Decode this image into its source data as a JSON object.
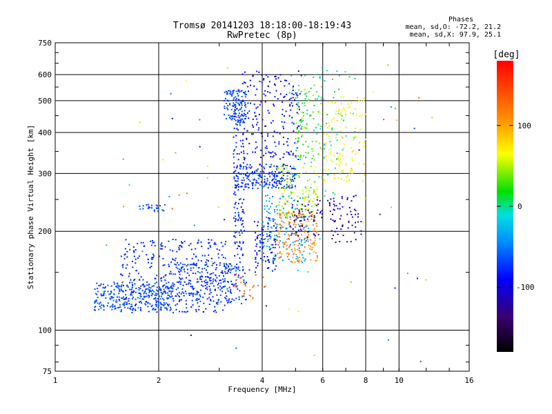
{
  "chart_data": {
    "type": "scatter",
    "title": "Tromsø 20141203 18:18:00-18:19:43",
    "subtitle": "RwPretec (8p)",
    "xlabel": "Frequency [MHz]",
    "ylabel": "Stationary phase Virtual Height [km]",
    "x_scale": "log",
    "y_scale": "log",
    "xlim": [
      1,
      16
    ],
    "ylim": [
      75,
      750
    ],
    "grid": true,
    "x_ticks": [
      1,
      2,
      4,
      6,
      8,
      10,
      16
    ],
    "y_ticks": [
      75,
      100,
      200,
      300,
      400,
      500,
      600,
      750
    ],
    "info": {
      "heading": "Phases",
      "line1": "mean, sd,O: -72.2, 21.2",
      "line2": "mean, sd,X:  97.9, 25.1"
    },
    "colorbar": {
      "label": "[deg]",
      "ticks": [
        100,
        0,
        -100
      ],
      "range": [
        -180,
        180
      ]
    },
    "point_groups": [
      {
        "x": [
          1.3,
          2.2
        ],
        "y": [
          115,
          140
        ],
        "phase": [
          -75,
          -60
        ],
        "n": 300
      },
      {
        "x": [
          1.55,
          3.2
        ],
        "y": [
          113,
          190
        ],
        "phase": [
          -90,
          -75
        ],
        "n": 350
      },
      {
        "x": [
          2.2,
          3.6
        ],
        "y": [
          120,
          160
        ],
        "phase": [
          -85,
          -65
        ],
        "n": 220
      },
      {
        "x": [
          1.75,
          2.1
        ],
        "y": [
          230,
          242
        ],
        "phase": [
          -75,
          -65
        ],
        "n": 25
      },
      {
        "x": [
          3.1,
          3.6
        ],
        "y": [
          430,
          540
        ],
        "phase": [
          -80,
          -60
        ],
        "n": 120
      },
      {
        "x": [
          3.3,
          3.55
        ],
        "y": [
          160,
          500
        ],
        "phase": [
          -95,
          -70
        ],
        "n": 130
      },
      {
        "x": [
          3.3,
          5.0
        ],
        "y": [
          270,
          320
        ],
        "phase": [
          -90,
          -65
        ],
        "n": 220
      },
      {
        "x": [
          3.5,
          5.2
        ],
        "y": [
          330,
          620
        ],
        "phase": [
          -110,
          -80
        ],
        "n": 200
      },
      {
        "x": [
          4.0,
          5.5
        ],
        "y": [
          160,
          260
        ],
        "phase": [
          -55,
          -25
        ],
        "n": 160
      },
      {
        "x": [
          3.8,
          4.4
        ],
        "y": [
          150,
          220
        ],
        "phase": [
          -110,
          -85
        ],
        "n": 80
      },
      {
        "x": [
          3.3,
          4.1
        ],
        "y": [
          125,
          150
        ],
        "phase": [
          115,
          140
        ],
        "n": 25
      },
      {
        "x": [
          4.4,
          5.8
        ],
        "y": [
          160,
          230
        ],
        "phase": [
          95,
          135
        ],
        "n": 160
      },
      {
        "x": [
          4.4,
          5.8
        ],
        "y": [
          220,
          320
        ],
        "phase": [
          40,
          70
        ],
        "n": 130
      },
      {
        "x": [
          4.8,
          6.0
        ],
        "y": [
          190,
          250
        ],
        "phase": [
          -135,
          -110
        ],
        "n": 60
      },
      {
        "x": [
          5.0,
          6.0
        ],
        "y": [
          330,
          560
        ],
        "phase": [
          15,
          50
        ],
        "n": 80
      },
      {
        "x": [
          6.0,
          8.0
        ],
        "y": [
          280,
          520
        ],
        "phase": [
          55,
          85
        ],
        "n": 120
      },
      {
        "x": [
          6.2,
          7.8
        ],
        "y": [
          185,
          260
        ],
        "phase": [
          -140,
          -110
        ],
        "n": 70
      },
      {
        "x": [
          4.8,
          7.5
        ],
        "y": [
          250,
          620
        ],
        "phase": [
          -30,
          20
        ],
        "n": 80
      },
      {
        "x": [
          1.4,
          12.5
        ],
        "y": [
          80,
          650
        ],
        "phase": [
          -150,
          150
        ],
        "n": 70
      }
    ]
  }
}
